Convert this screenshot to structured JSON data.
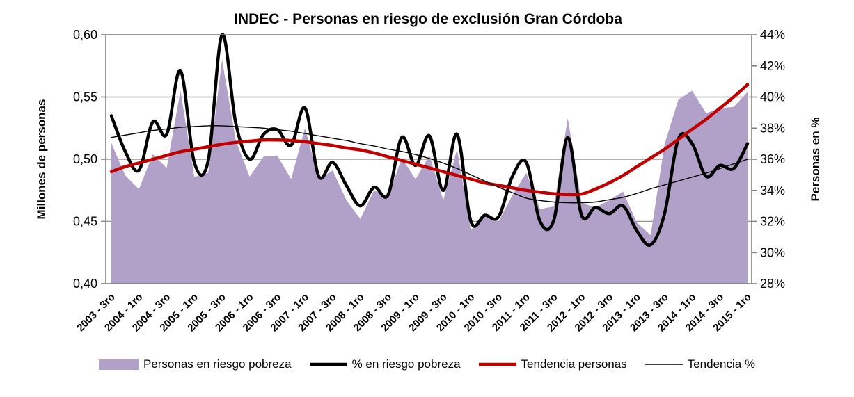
{
  "title": {
    "text": "INDEC - Personas en riesgo de exclusión Gran Córdoba"
  },
  "axes": {
    "left": {
      "title": "Millones de personas",
      "tick_labels": [
        "0,60",
        "0,55",
        "0,50",
        "0,45",
        "0,40"
      ]
    },
    "right": {
      "title": "Personas en %",
      "tick_labels": [
        "44%",
        "42%",
        "40%",
        "38%",
        "36%",
        "34%",
        "32%",
        "30%",
        "28%"
      ]
    }
  },
  "legend": {
    "items": [
      {
        "label": "Personas en riesgo pobreza",
        "marker": "area-swatch",
        "color": "#B1A0C7"
      },
      {
        "label": "% en riesgo pobreza",
        "marker": "thick-line",
        "color": "#000000"
      },
      {
        "label": "Tendencia personas",
        "marker": "thick-line",
        "color": "#C00000"
      },
      {
        "label": "Tendencia %",
        "marker": "thin-line",
        "color": "#000000"
      }
    ]
  },
  "colors": {
    "area": "#B1A0C7",
    "pct_line": "#000000",
    "trend_personas": "#C00000",
    "trend_pct": "#000000",
    "gridline": "#969696",
    "axis": "#808080",
    "text": "#000000",
    "background": "#FFFFFF"
  },
  "chart_data": {
    "type": "area",
    "title": "INDEC - Personas en riesgo de exclusión Gran Córdoba",
    "xlabel": "",
    "ylabel_left": "Millones de personas",
    "ylabel_right": "Personas en %",
    "left_ylim": [
      0.4,
      0.6
    ],
    "right_ylim": [
      28,
      44
    ],
    "grid": "horizontal",
    "legend_position": "bottom",
    "x_tick_labels": [
      "2003 - 3ro",
      "2004 - 1ro",
      "2004 - 3ro",
      "2005 - 1ro",
      "2005 - 3ro",
      "2006 - 1ro",
      "2006 - 3ro",
      "2007 - 1ro",
      "2007 - 3ro",
      "2008 - 1ro",
      "2008 - 3ro",
      "2009 - 1ro",
      "2009 - 3ro",
      "2010 - 1ro",
      "2010 - 3ro",
      "2011 - 1ro",
      "2011 - 3ro",
      "2012 - 1ro",
      "2012 - 3ro",
      "2013 - 1ro",
      "2013 - 3ro",
      "2014 - 1ro",
      "2014 - 3ro",
      "2015 - 1ro"
    ],
    "points_per_label": 2,
    "series": [
      {
        "name": "Personas en riesgo pobreza",
        "type": "area",
        "axis": "left",
        "smooth": false,
        "color": "#B1A0C7",
        "stroke_width": 0,
        "values": [
          0.513,
          0.487,
          0.476,
          0.504,
          0.493,
          0.555,
          0.486,
          0.489,
          0.58,
          0.515,
          0.486,
          0.502,
          0.503,
          0.484,
          0.525,
          0.484,
          0.491,
          0.467,
          0.452,
          0.475,
          0.47,
          0.501,
          0.484,
          0.503,
          0.467,
          0.508,
          0.443,
          0.456,
          0.45,
          0.471,
          0.489,
          0.46,
          0.462,
          0.533,
          0.465,
          0.461,
          0.467,
          0.474,
          0.449,
          0.439,
          0.512,
          0.548,
          0.555,
          0.537,
          0.541,
          0.542,
          0.554
        ]
      },
      {
        "name": "% en riesgo pobreza",
        "type": "line",
        "axis": "right",
        "smooth": true,
        "color": "#000000",
        "stroke_width": 4.5,
        "values": [
          38.8,
          36.5,
          35.3,
          38.4,
          37.6,
          41.7,
          35.8,
          35.9,
          44.0,
          38.3,
          36.0,
          37.6,
          37.9,
          36.9,
          39.3,
          34.9,
          35.8,
          34.3,
          33.0,
          34.2,
          33.7,
          37.4,
          35.6,
          37.5,
          34.0,
          37.6,
          32.0,
          32.4,
          32.3,
          34.9,
          35.8,
          32.0,
          32.1,
          37.4,
          32.4,
          32.9,
          32.5,
          33.0,
          31.4,
          30.5,
          32.5,
          37.3,
          37.0,
          34.9,
          35.6,
          35.4,
          37.0
        ]
      },
      {
        "name": "Tendencia personas",
        "type": "line",
        "axis": "left",
        "smooth": true,
        "color": "#C00000",
        "stroke_width": 4.5,
        "values": [
          0.49,
          0.494,
          0.497,
          0.5,
          0.503,
          0.506,
          0.508,
          0.51,
          0.512,
          0.5135,
          0.5145,
          0.5155,
          0.5155,
          0.515,
          0.514,
          0.5125,
          0.511,
          0.509,
          0.5075,
          0.505,
          0.502,
          0.499,
          0.496,
          0.493,
          0.49,
          0.487,
          0.484,
          0.481,
          0.479,
          0.477,
          0.475,
          0.4735,
          0.4722,
          0.4716,
          0.472,
          0.476,
          0.481,
          0.487,
          0.494,
          0.501,
          0.508,
          0.516,
          0.524,
          0.532,
          0.541,
          0.55,
          0.56
        ]
      },
      {
        "name": "Tendencia %",
        "type": "line",
        "axis": "right",
        "smooth": true,
        "color": "#000000",
        "stroke_width": 1.4,
        "values": [
          37.4,
          37.55,
          37.7,
          37.85,
          37.95,
          38.05,
          38.1,
          38.15,
          38.15,
          38.1,
          38.05,
          38.0,
          37.9,
          37.8,
          37.65,
          37.5,
          37.35,
          37.2,
          37.0,
          36.85,
          36.65,
          36.5,
          36.3,
          36.05,
          35.75,
          35.4,
          35.0,
          34.6,
          34.2,
          33.85,
          33.5,
          33.35,
          33.25,
          33.2,
          33.2,
          33.25,
          33.4,
          33.55,
          33.8,
          34.1,
          34.35,
          34.6,
          34.85,
          35.1,
          35.4,
          35.7,
          36.0
        ]
      }
    ]
  }
}
